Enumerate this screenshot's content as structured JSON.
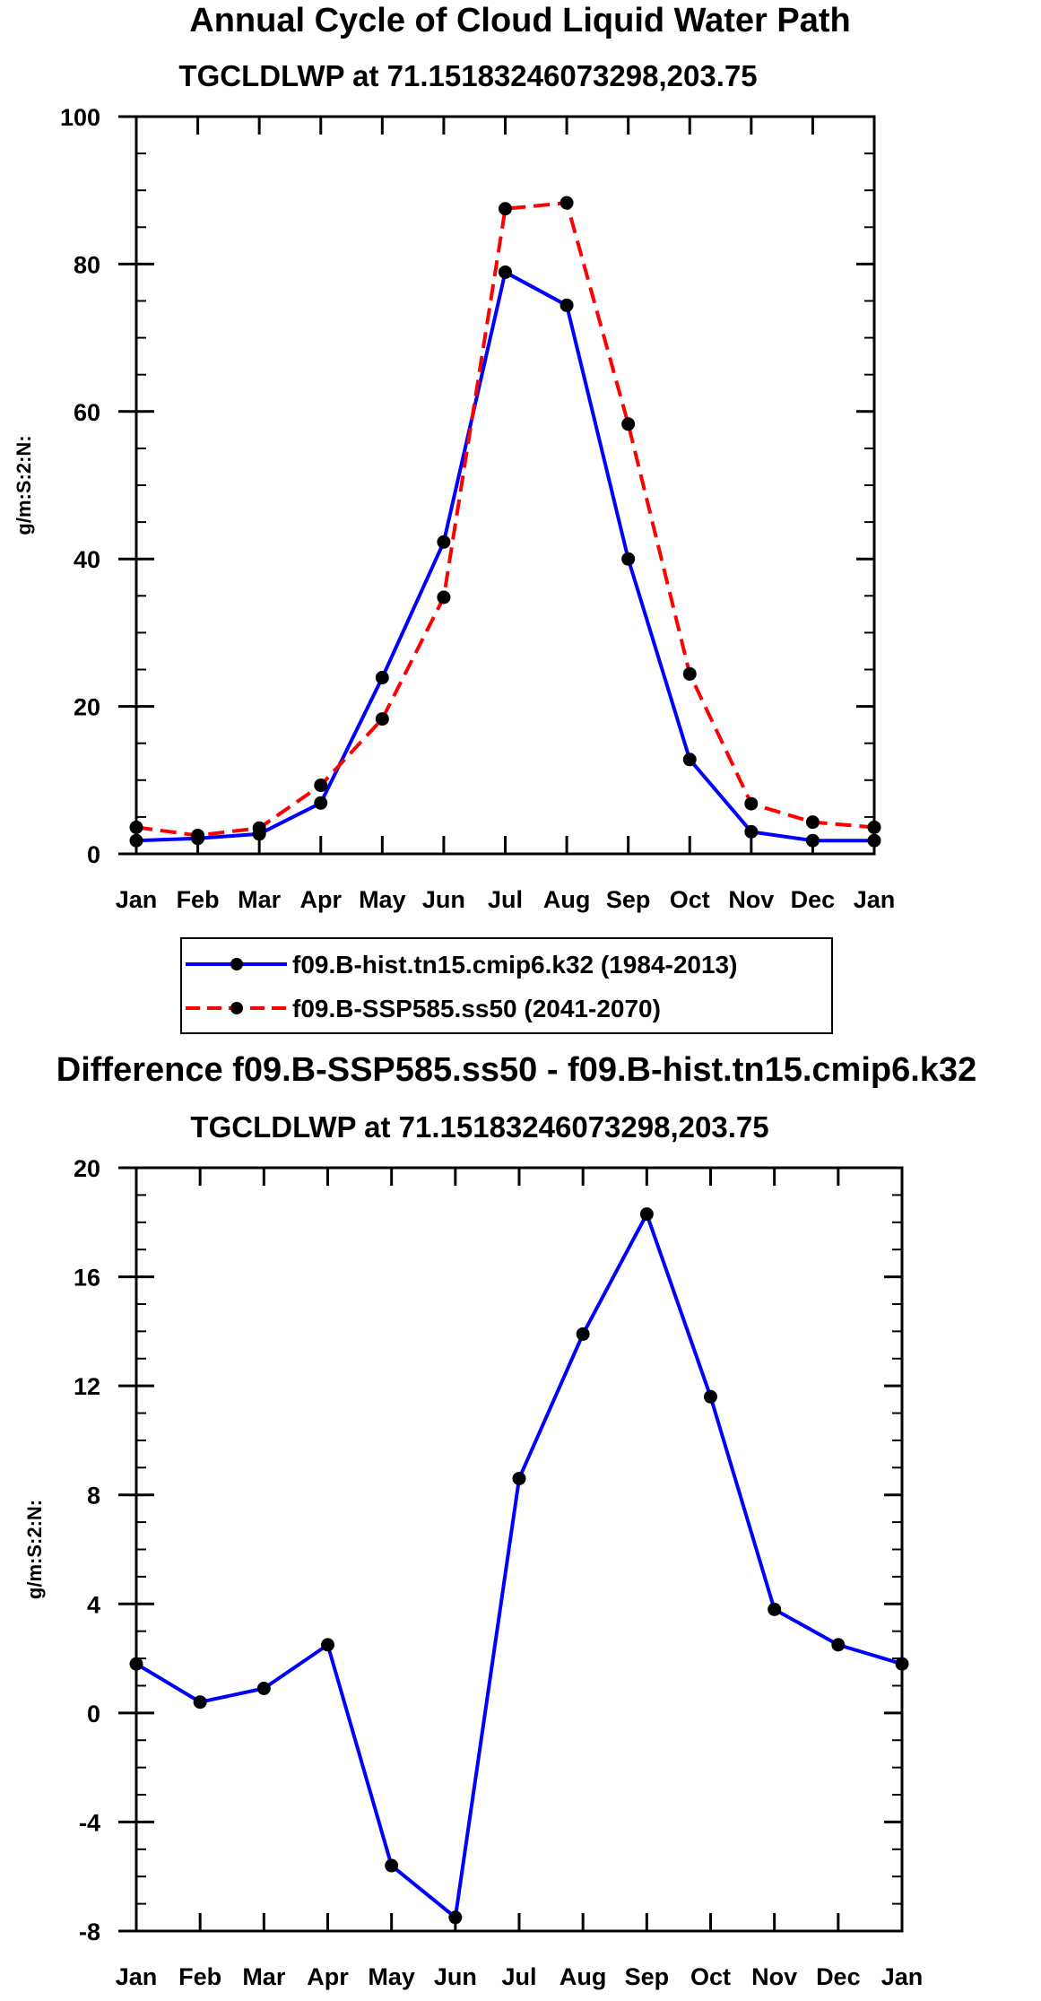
{
  "chart_data": [
    {
      "type": "line",
      "title": "Annual Cycle of Cloud Liquid Water Path",
      "subtitle": "TGCLDLWP at 71.15183246073298,203.75",
      "xlabel": "",
      "ylabel": "g/m:S:2:N:",
      "categories": [
        "Jan",
        "Feb",
        "Mar",
        "Apr",
        "May",
        "Jun",
        "Jul",
        "Aug",
        "Sep",
        "Oct",
        "Nov",
        "Dec",
        "Jan"
      ],
      "ylim": [
        0,
        100
      ],
      "yticks": [
        "0",
        "20",
        "40",
        "60",
        "80",
        "100"
      ],
      "ytick_values": [
        0,
        20,
        40,
        60,
        80,
        100
      ],
      "series": [
        {
          "name": "f09.B-hist.tn15.cmip6.k32 (1984-2013)",
          "color": "#0000ff",
          "dash": "solid",
          "values": [
            1.8,
            2.1,
            2.7,
            6.9,
            23.9,
            42.3,
            78.9,
            74.4,
            40.0,
            12.8,
            3.0,
            1.8,
            1.8
          ]
        },
        {
          "name": "f09.B-SSP585.ss50 (2041-2070)",
          "color": "#ff0000",
          "dash": "dashed",
          "values": [
            3.6,
            2.5,
            3.5,
            9.3,
            18.3,
            34.8,
            87.5,
            88.3,
            58.3,
            24.4,
            6.8,
            4.3,
            3.6
          ]
        }
      ],
      "legend": {
        "position": "bottom",
        "entries": [
          "f09.B-hist.tn15.cmip6.k32 (1984-2013)",
          "f09.B-SSP585.ss50 (2041-2070)"
        ]
      }
    },
    {
      "type": "line",
      "title": "Difference f09.B-SSP585.ss50 - f09.B-hist.tn15.cmip6.k32",
      "subtitle": "TGCLDLWP at 71.15183246073298,203.75",
      "xlabel": "",
      "ylabel": "g/m:S:2:N:",
      "categories": [
        "Jan",
        "Feb",
        "Mar",
        "Apr",
        "May",
        "Jun",
        "Jul",
        "Aug",
        "Sep",
        "Oct",
        "Nov",
        "Dec",
        "Jan"
      ],
      "ylim": [
        -8,
        20
      ],
      "yticks": [
        "-8",
        "-4",
        "0",
        "4",
        "8",
        "12",
        "16",
        "20"
      ],
      "ytick_values": [
        -8,
        -4,
        0,
        4,
        8,
        12,
        16,
        20
      ],
      "series": [
        {
          "name": "Difference",
          "color": "#0000ff",
          "dash": "solid",
          "values": [
            1.8,
            0.4,
            0.9,
            2.5,
            -5.6,
            -7.5,
            8.6,
            13.9,
            18.3,
            11.6,
            3.8,
            2.5,
            1.8
          ]
        }
      ]
    }
  ]
}
